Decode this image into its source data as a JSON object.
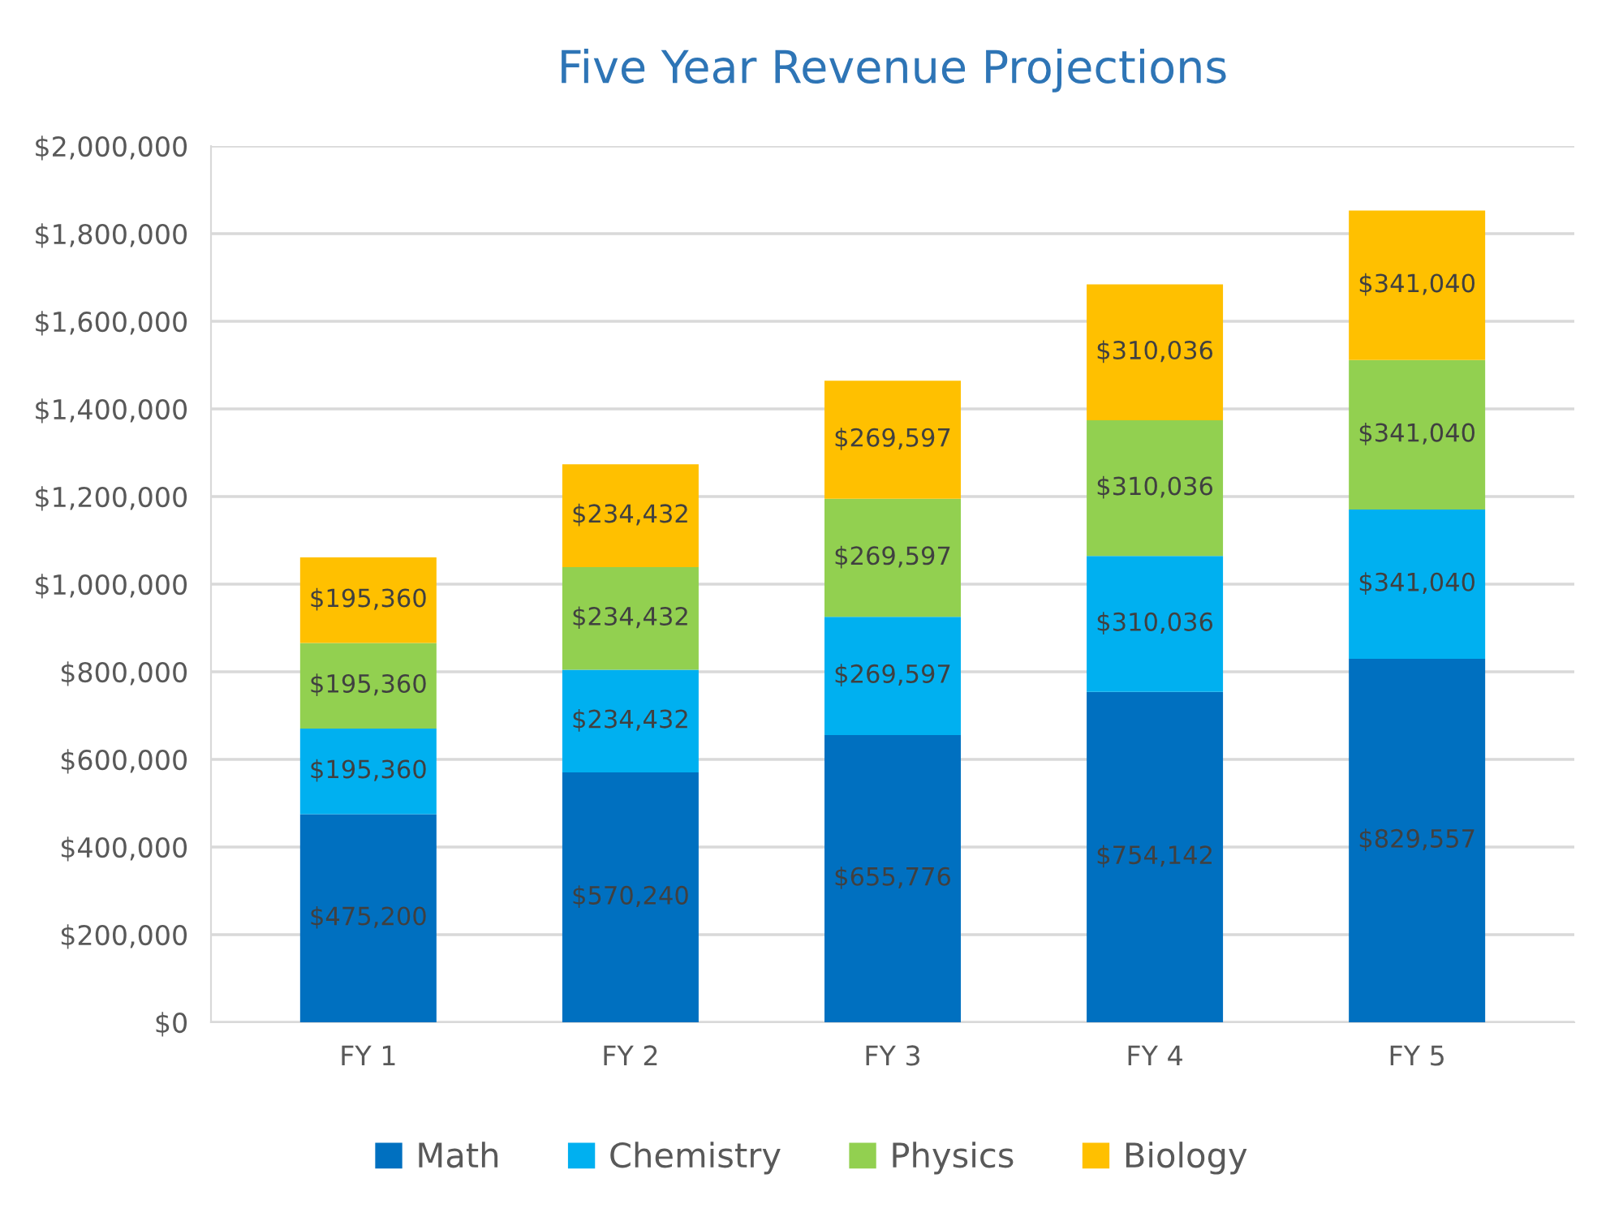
{
  "chart_data": {
    "type": "bar",
    "title": "Five Year Revenue Projections",
    "stacked": true,
    "categories": [
      "FY 1",
      "FY 2",
      "FY 3",
      "FY 4",
      "FY 5"
    ],
    "series": [
      {
        "name": "Math",
        "color": "#0070c0",
        "values": [
          475200,
          570240,
          655776,
          754142,
          829557
        ],
        "value_labels": [
          "$475,200",
          "$570,240",
          "$655,776",
          "$754,142",
          "$829,557"
        ]
      },
      {
        "name": "Chemistry",
        "color": "#00b0f0",
        "values": [
          195360,
          234432,
          269597,
          310036,
          341040
        ],
        "value_labels": [
          "$195,360",
          "$234,432",
          "$269,597",
          "$310,036",
          "$341,040"
        ]
      },
      {
        "name": "Physics",
        "color": "#92d050",
        "values": [
          195360,
          234432,
          269597,
          310036,
          341040
        ],
        "value_labels": [
          "$195,360",
          "$234,432",
          "$269,597",
          "$310,036",
          "$341,040"
        ]
      },
      {
        "name": "Biology",
        "color": "#ffc000",
        "values": [
          195360,
          234432,
          269597,
          310036,
          341040
        ],
        "value_labels": [
          "$195,360",
          "$234,432",
          "$269,597",
          "$310,036",
          "$341,040"
        ]
      }
    ],
    "ylim": [
      0,
      2000000
    ],
    "yticks": [
      {
        "value": 0,
        "label": "$0"
      },
      {
        "value": 200000,
        "label": "$200,000"
      },
      {
        "value": 400000,
        "label": "$400,000"
      },
      {
        "value": 600000,
        "label": "$600,000"
      },
      {
        "value": 800000,
        "label": "$800,000"
      },
      {
        "value": 1000000,
        "label": "$1,000,000"
      },
      {
        "value": 1200000,
        "label": "$1,200,000"
      },
      {
        "value": 1400000,
        "label": "$1,400,000"
      },
      {
        "value": 1600000,
        "label": "$1,600,000"
      },
      {
        "value": 1800000,
        "label": "$1,800,000"
      },
      {
        "value": 2000000,
        "label": "$2,000,000"
      }
    ],
    "grid": "y",
    "legend": "bottom"
  }
}
